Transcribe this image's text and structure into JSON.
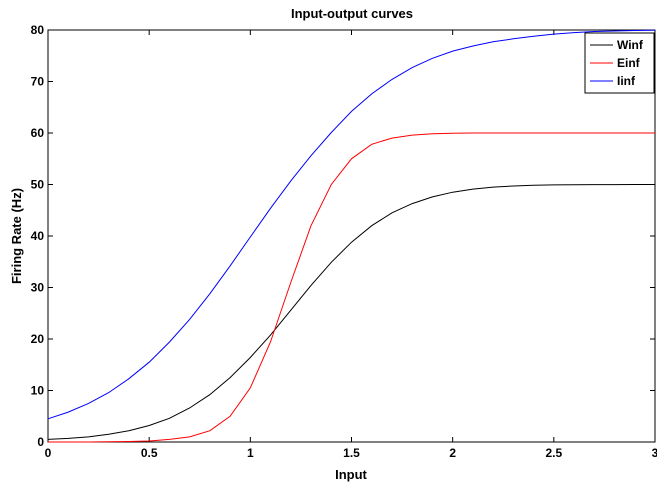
{
  "chart_data": {
    "type": "line",
    "title": "Input-output curves",
    "xlabel": "Input",
    "ylabel": "Firing Rate (Hz)",
    "xlim": [
      0,
      3
    ],
    "ylim": [
      0,
      80
    ],
    "xticks": [
      0,
      0.5,
      1,
      1.5,
      2,
      2.5,
      3
    ],
    "xtick_labels": [
      "0",
      "0.5",
      "1",
      "1.5",
      "2",
      "2.5",
      "3"
    ],
    "yticks": [
      0,
      10,
      20,
      30,
      40,
      50,
      60,
      70,
      80
    ],
    "ytick_labels": [
      "0",
      "10",
      "20",
      "30",
      "40",
      "50",
      "60",
      "70",
      "80"
    ],
    "grid": false,
    "legend_position": "top-right",
    "x": [
      0,
      0.1,
      0.2,
      0.3,
      0.4,
      0.5,
      0.6,
      0.7,
      0.8,
      0.9,
      1.0,
      1.1,
      1.2,
      1.3,
      1.4,
      1.5,
      1.6,
      1.7,
      1.8,
      1.9,
      2.0,
      2.1,
      2.2,
      2.3,
      2.4,
      2.5,
      2.6,
      2.7,
      2.8,
      2.9,
      3.0
    ],
    "series": [
      {
        "name": "Winf",
        "color": "#000000",
        "values": [
          0.5,
          0.7,
          1.0,
          1.5,
          2.2,
          3.2,
          4.6,
          6.6,
          9.2,
          12.5,
          16.4,
          20.8,
          25.6,
          30.4,
          34.9,
          38.8,
          42.0,
          44.5,
          46.3,
          47.6,
          48.5,
          49.1,
          49.5,
          49.7,
          49.85,
          49.92,
          49.96,
          49.98,
          49.99,
          50.0,
          50.0
        ]
      },
      {
        "name": "Einf",
        "color": "#ff0000",
        "values": [
          0,
          0,
          0,
          0.05,
          0.1,
          0.2,
          0.5,
          1.0,
          2.2,
          5.0,
          10.5,
          19.5,
          31.0,
          42.0,
          50.0,
          55.0,
          57.8,
          59.0,
          59.6,
          59.85,
          59.95,
          60.0,
          60.0,
          60.0,
          60.0,
          60.0,
          60.0,
          60.0,
          60.0,
          60.0,
          60.0
        ]
      },
      {
        "name": "Iinf",
        "color": "#0000ff",
        "values": [
          4.5,
          5.8,
          7.5,
          9.6,
          12.3,
          15.5,
          19.4,
          23.8,
          28.8,
          34.2,
          39.8,
          45.4,
          50.7,
          55.6,
          60.1,
          64.2,
          67.6,
          70.4,
          72.7,
          74.5,
          75.9,
          76.9,
          77.7,
          78.3,
          78.8,
          79.2,
          79.5,
          79.7,
          79.8,
          79.9,
          79.95
        ]
      }
    ]
  }
}
